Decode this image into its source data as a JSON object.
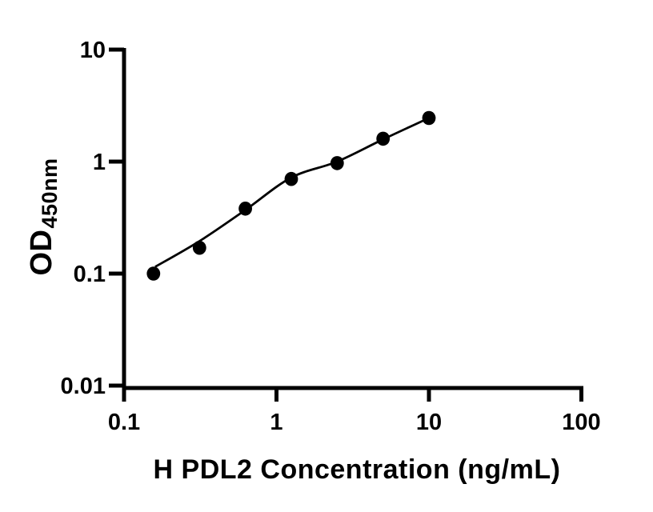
{
  "figure": {
    "background_color": "#ffffff",
    "axis_color": "#000000",
    "marker_color": "#000000",
    "curve_color": "#000000"
  },
  "chart_data": {
    "type": "scatter",
    "title": "",
    "xlabel": "H PDL2 Concentration (ng/mL)",
    "ylabel_main": "OD",
    "ylabel_sub": "450nm",
    "x_scale": "log",
    "y_scale": "log",
    "xlim": [
      0.1,
      100
    ],
    "ylim": [
      0.01,
      10
    ],
    "x_ticks": [
      0.1,
      1,
      10,
      100
    ],
    "x_tick_labels": [
      "0.1",
      "1",
      "10",
      "100"
    ],
    "y_ticks": [
      0.01,
      0.1,
      1,
      10
    ],
    "y_tick_labels": [
      "0.01",
      "0.1",
      "1",
      "10"
    ],
    "grid": false,
    "legend": false,
    "marker": "filled-circle",
    "points": [
      {
        "x": 0.156,
        "y": 0.1
      },
      {
        "x": 0.3125,
        "y": 0.17
      },
      {
        "x": 0.625,
        "y": 0.38
      },
      {
        "x": 1.25,
        "y": 0.7
      },
      {
        "x": 2.5,
        "y": 0.97
      },
      {
        "x": 5,
        "y": 1.6
      },
      {
        "x": 10,
        "y": 2.45
      }
    ],
    "fit_curve": [
      {
        "x": 0.16,
        "y": 0.115
      },
      {
        "x": 0.3125,
        "y": 0.195
      },
      {
        "x": 0.625,
        "y": 0.37
      },
      {
        "x": 1.25,
        "y": 0.72
      },
      {
        "x": 2.5,
        "y": 1.0
      },
      {
        "x": 5,
        "y": 1.58
      },
      {
        "x": 10,
        "y": 2.45
      }
    ]
  }
}
